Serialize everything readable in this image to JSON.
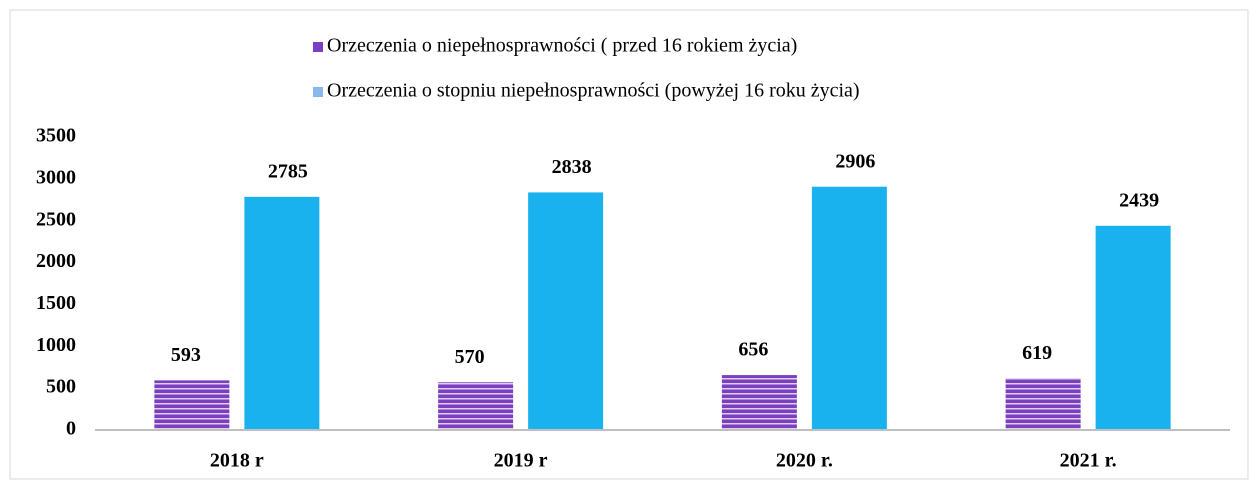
{
  "chart_data": {
    "type": "bar",
    "categories": [
      "2018 r",
      "2019 r",
      "2020 r.",
      "2021 r."
    ],
    "series": [
      {
        "name": "Orzeczenia o niepełnosprawności ( przed 16 rokiem życia)",
        "color": "#7b3fc0",
        "values": [
          593,
          570,
          656,
          619
        ]
      },
      {
        "name": "Orzeczenia o stopniu niepełnosprawności (powyżej 16 roku życia)",
        "color": "#19b2ef",
        "values": [
          2785,
          2838,
          2906,
          2439
        ]
      }
    ],
    "ylim": [
      0,
      3500
    ],
    "yticks": [
      0,
      500,
      1000,
      1500,
      2000,
      2500,
      3000,
      3500
    ],
    "grid": false
  }
}
